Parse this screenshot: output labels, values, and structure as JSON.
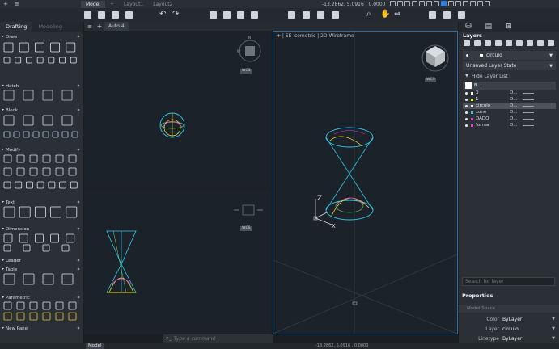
{
  "layout_bar": {
    "plus": "+",
    "tabs": [
      "Model",
      "+",
      "Layout1",
      "Layout2"
    ],
    "coords": "-13.2862, 5.0916 , 0.0000"
  },
  "palette": {
    "tabs": [
      "Drafting",
      "Modeling"
    ],
    "sections": [
      "Draw",
      "Hatch",
      "Block",
      "Modify",
      "Text",
      "Dimension",
      "Leader",
      "Table",
      "Parametric",
      "New Panel"
    ]
  },
  "drawing_tabs": {
    "add": "+",
    "active": "Auto 4"
  },
  "viewport_right": {
    "label": "+ | SE Isometric | 2D Wireframe"
  },
  "wcs_label": "WCS",
  "command": {
    "prompt": ">_",
    "placeholder": "Type a command"
  },
  "layers": {
    "title": "Layers",
    "current_layer": "circulo",
    "layer_state": "Unsaved Layer State",
    "hide_list": "Hide Layer List",
    "name_header": "N...",
    "rows": [
      {
        "name": "0",
        "color": "#ffffff",
        "desc": "D..."
      },
      {
        "name": "1",
        "color": "#f2e63d",
        "desc": "D..."
      },
      {
        "name": "circulo",
        "color": "#ffffff",
        "desc": "D...",
        "selected": true
      },
      {
        "name": "cone",
        "color": "#33c6e8",
        "desc": "D..."
      },
      {
        "name": "DADO",
        "color": "#e23fd6",
        "desc": "D..."
      },
      {
        "name": "forma",
        "color": "#e23fd6",
        "desc": "D..."
      }
    ],
    "search_placeholder": "Search for layer"
  },
  "properties": {
    "title": "Properties",
    "space": "Model Space",
    "rows": [
      {
        "key": "Color",
        "value": "ByLayer"
      },
      {
        "key": "Layer",
        "value": "circulo"
      },
      {
        "key": "Linetype",
        "value": "ByLayer"
      }
    ]
  },
  "colors": {
    "accent_blue": "#2f7de1",
    "cyan": "#33c6e8",
    "yellow": "#e8dd3a",
    "magenta": "#e23fd6",
    "wire_green": "#7bd46a"
  }
}
